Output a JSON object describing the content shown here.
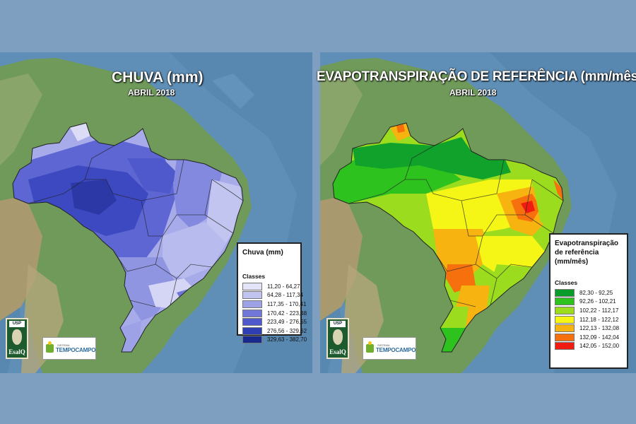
{
  "maps": [
    {
      "title": "CHUVA (mm)",
      "subtitle": "ABRIL 2018",
      "legend": {
        "title_lines": [
          "Chuva (mm)"
        ],
        "classes_label": "Classes",
        "classes": [
          {
            "label": "11,20 - 64,27",
            "color": "#e4e4f8"
          },
          {
            "label": "64,28 - 117,34",
            "color": "#c2c4f0"
          },
          {
            "label": "117,35 - 170,41",
            "color": "#9da2e6"
          },
          {
            "label": "170,42 - 223,48",
            "color": "#7077d8"
          },
          {
            "label": "223,49 - 276,55",
            "color": "#4f59cc"
          },
          {
            "label": "276,56 - 329,62",
            "color": "#2f3eb2"
          },
          {
            "label": "329,63 - 382,70",
            "color": "#18288c"
          }
        ]
      }
    },
    {
      "title": "EVAPOTRANSPIRAÇÃO DE REFERÊNCIA (mm/mês)",
      "subtitle": "ABRIL 2018",
      "legend": {
        "title_lines": [
          "Evapotranspiração",
          "de referência",
          "(mm/mês)"
        ],
        "classes_label": "Classes",
        "classes": [
          {
            "label": "82,30 - 92,25",
            "color": "#0a9c2a"
          },
          {
            "label": "92,26 - 102,21",
            "color": "#2ec21e"
          },
          {
            "label": "102,22 - 112,17",
            "color": "#9bdc1e"
          },
          {
            "label": "112,18 - 122,12",
            "color": "#f5f516"
          },
          {
            "label": "122,13 - 132,08",
            "color": "#f7b410"
          },
          {
            "label": "132,09 - 142,04",
            "color": "#f7700e"
          },
          {
            "label": "142,05 - 152,00",
            "color": "#f01c12"
          }
        ]
      }
    }
  ],
  "logos": {
    "institution_top": "USP",
    "institution_name": "EsalQ",
    "system_small": "SISTEMA",
    "system_name": "TEMPOCAMPO"
  }
}
